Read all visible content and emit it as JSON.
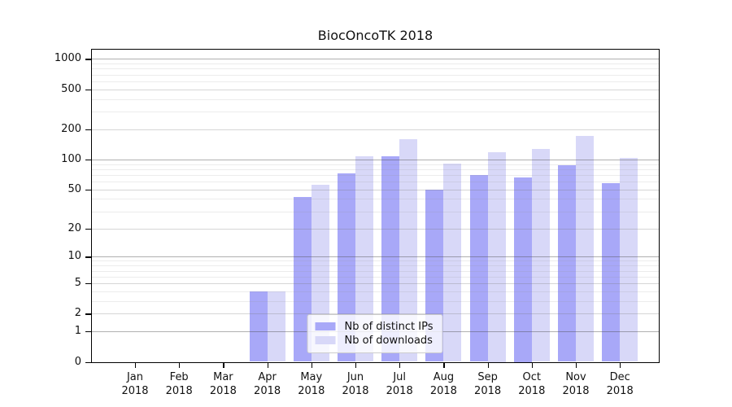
{
  "title": "BiocOncoTK 2018",
  "chart_data": {
    "type": "bar",
    "title": "BiocOncoTK 2018",
    "scale": "log1p",
    "grid": true,
    "legend_position": "lower center",
    "xlabel": "",
    "ylabel": "",
    "categories": [
      "Jan",
      "Feb",
      "Mar",
      "Apr",
      "May",
      "Jun",
      "Jul",
      "Aug",
      "Sep",
      "Oct",
      "Nov",
      "Dec"
    ],
    "x_tick_year": "2018",
    "y_ticks": [
      0,
      1,
      2,
      5,
      10,
      20,
      50,
      100,
      200,
      500,
      1000
    ],
    "ylim": [
      0,
      1230
    ],
    "series": [
      {
        "name": "Nb of distinct IPs",
        "color": "#a8a8f8",
        "values": [
          0,
          0,
          0,
          4,
          42,
          72,
          107,
          50,
          70,
          66,
          87,
          58
        ]
      },
      {
        "name": "Nb of downloads",
        "color": "#d8d8f8",
        "values": [
          0,
          0,
          0,
          4,
          56,
          108,
          159,
          91,
          118,
          127,
          171,
          103
        ]
      }
    ]
  }
}
